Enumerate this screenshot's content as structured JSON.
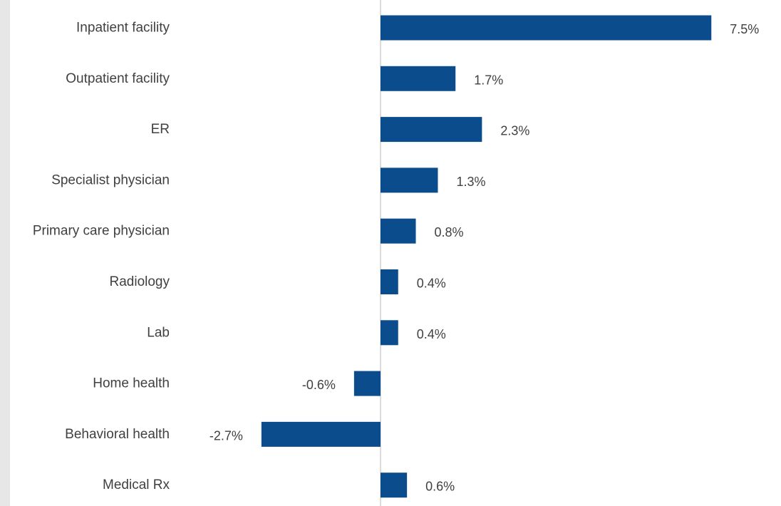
{
  "chart_data": {
    "type": "bar",
    "orientation": "horizontal",
    "categories": [
      "Inpatient facility",
      "Outpatient facility",
      "ER",
      "Specialist physician",
      "Primary care physician",
      "Radiology",
      "Lab",
      "Home health",
      "Behavioral health",
      "Medical Rx"
    ],
    "values": [
      7.5,
      1.7,
      2.3,
      1.3,
      0.8,
      0.4,
      0.4,
      -0.6,
      -2.7,
      0.6
    ],
    "data_labels": [
      "7.5%",
      "1.7%",
      "2.3%",
      "1.3%",
      "0.8%",
      "0.4%",
      "0.4%",
      "-0.6%",
      "-2.7%",
      "0.6%"
    ],
    "value_unit": "%",
    "bar_color": "#0b4d8c",
    "axis_color": "#d0d0d0",
    "xlim": [
      -2.7,
      7.5
    ],
    "grid": false,
    "legend": "none"
  }
}
